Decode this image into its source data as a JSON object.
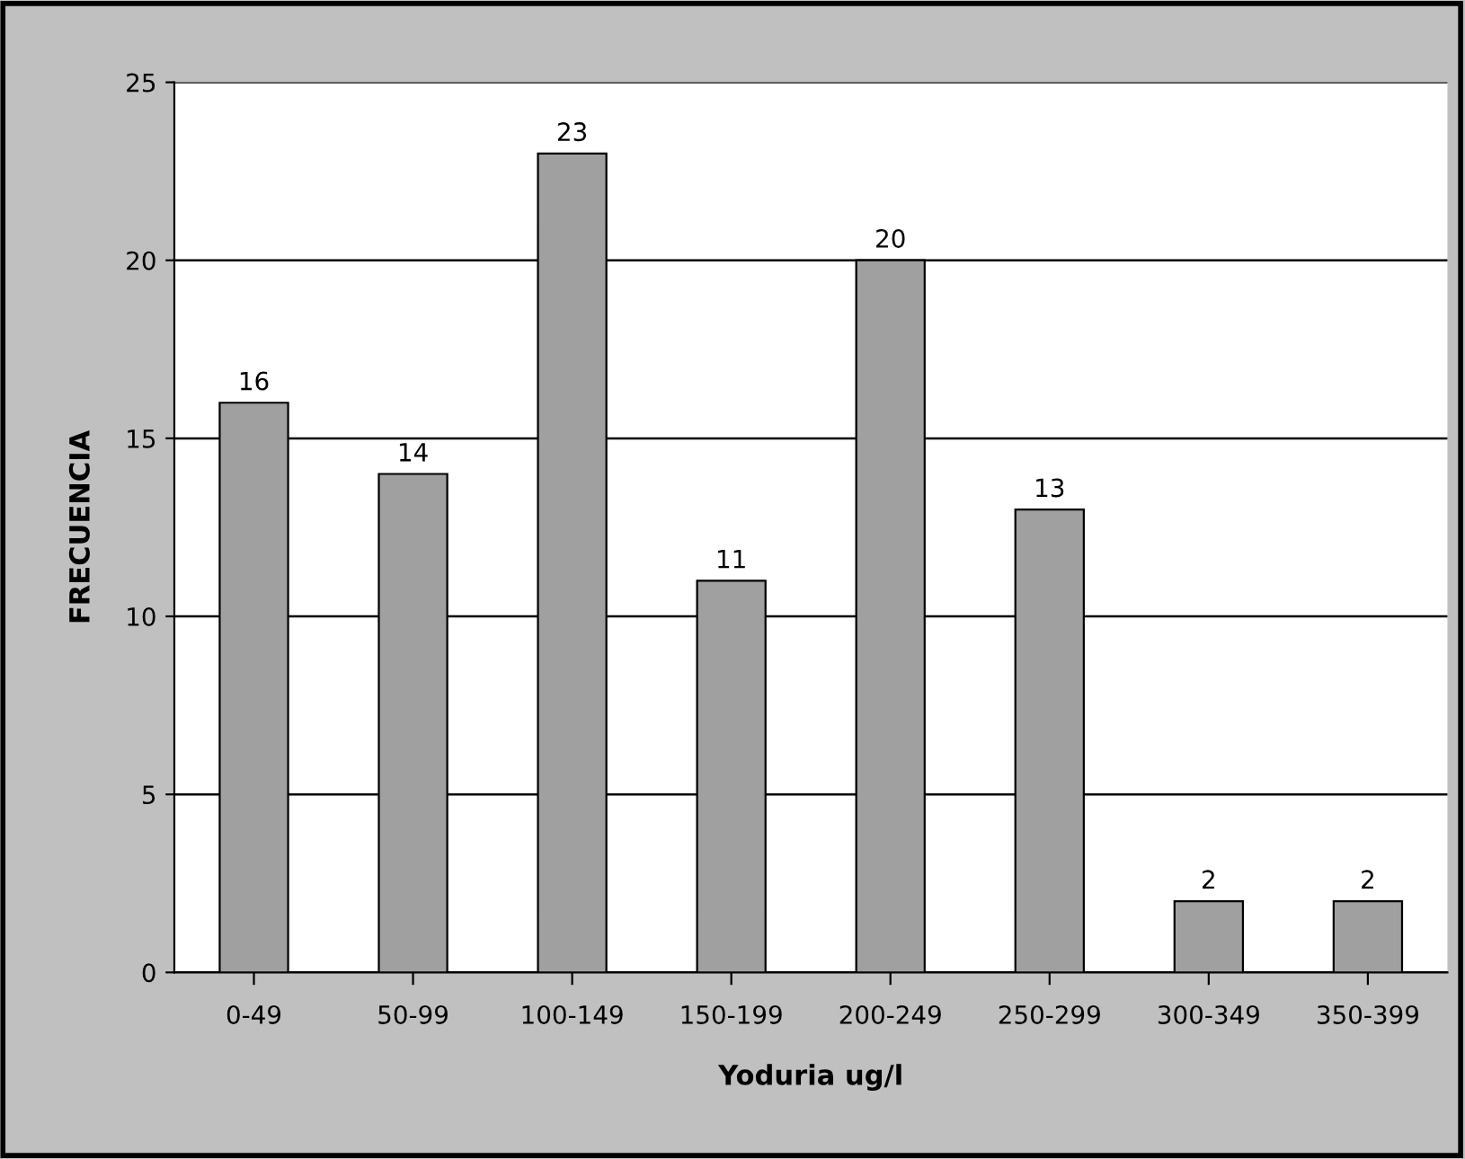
{
  "chart_data": {
    "type": "bar",
    "categories": [
      "0-49",
      "50-99",
      "100-149",
      "150-199",
      "200-249",
      "250-299",
      "300-349",
      "350-399"
    ],
    "values": [
      16,
      14,
      23,
      11,
      20,
      13,
      2,
      2
    ],
    "color": "#a0a0a0",
    "xlabel": "Yoduria ug/l",
    "ylabel": "FRECUENCIA",
    "ylim": [
      0,
      25
    ],
    "yticks": [
      0,
      5,
      10,
      15,
      20,
      25
    ],
    "grid": "y",
    "data_labels": true
  }
}
